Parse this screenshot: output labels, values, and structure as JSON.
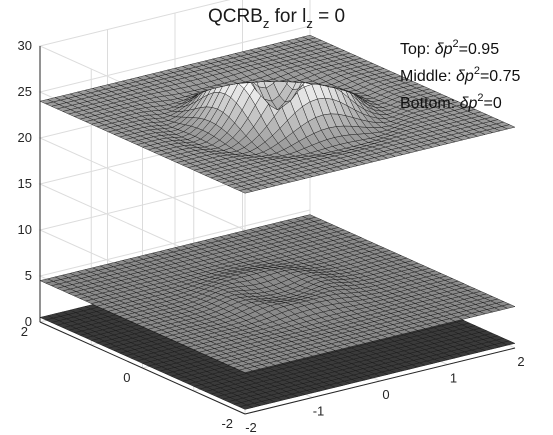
{
  "chart_data": {
    "type": "surface",
    "title": {
      "prefix": "QCRB",
      "sub1": "z",
      "middle": " for l",
      "sub2": "z",
      "suffix": " = 0"
    },
    "annotations": [
      {
        "label": "Top: ",
        "symbol": "δp",
        "power": "2",
        "value": "=0.95"
      },
      {
        "label": "Middle: ",
        "symbol": "δp",
        "power": "2",
        "value": "=0.75"
      },
      {
        "label": "Bottom: ",
        "symbol": "δp",
        "power": "2",
        "value": "=0"
      }
    ],
    "xlim": [
      -2,
      2
    ],
    "ylim": [
      -2,
      2
    ],
    "zlim": [
      0,
      30
    ],
    "x_ticks": [
      "-2",
      "-1",
      "0",
      "1",
      "2"
    ],
    "y_ticks": [
      "-2",
      "0",
      "2"
    ],
    "z_ticks": [
      "0",
      "5",
      "10",
      "15",
      "20",
      "25",
      "30"
    ],
    "grid": true,
    "surfaces": [
      {
        "name": "Top",
        "dp2": 0.95,
        "base": 24,
        "bump_height": 5.5,
        "ring_radius": 0.55,
        "ring_width": 0.35,
        "dip_depth": 1.5
      },
      {
        "name": "Middle",
        "dp2": 0.75,
        "base": 4.5,
        "bump_height": 0.6,
        "ring_radius": 0.6,
        "ring_width": 0.3,
        "dip_depth": 0
      },
      {
        "name": "Bottom",
        "dp2": 0,
        "base": 0.5,
        "bump_height": 0,
        "ring_radius": 0,
        "ring_width": 0.3,
        "dip_depth": 0
      }
    ]
  }
}
